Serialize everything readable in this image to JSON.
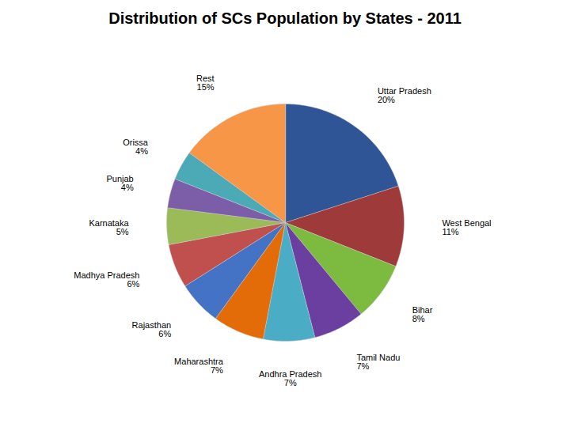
{
  "chart_data": {
    "type": "pie",
    "title": "Distribution of SCs Population by States - 2011",
    "categories": [
      "Uttar Pradesh",
      "West Bengal",
      "Bihar",
      "Tamil Nadu",
      "Andhra Pradesh",
      "Maharashtra",
      "Rajasthan",
      "Madhya Pradesh",
      "Karnataka",
      "Punjab",
      "Orissa",
      "Rest"
    ],
    "values": [
      20,
      11,
      8,
      7,
      7,
      7,
      6,
      6,
      5,
      4,
      4,
      15
    ],
    "value_labels": [
      "20%",
      "11%",
      "8%",
      "7%",
      "7%",
      "7%",
      "6%",
      "6%",
      "5%",
      "4%",
      "4%",
      "15%"
    ],
    "colors": [
      "#2F5597",
      "#9E3A3A",
      "#7CBB3F",
      "#6B3FA0",
      "#4BACC6",
      "#E36C09",
      "#4472C4",
      "#C0504D",
      "#9BBB59",
      "#7B5EA7",
      "#4BAAB5",
      "#F79646"
    ],
    "data_labels": true
  }
}
